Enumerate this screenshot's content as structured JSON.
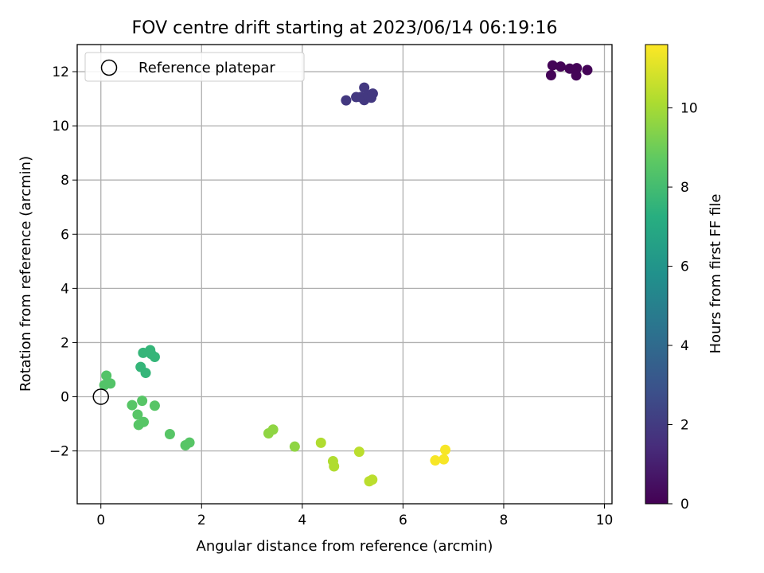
{
  "chart_data": {
    "type": "scatter",
    "title": "FOV centre drift starting at 2023/06/14 06:19:16",
    "xlabel": "Angular distance from reference (arcmin)",
    "ylabel": "Rotation from reference (arcmin)",
    "xlim": [
      -0.47,
      10.15
    ],
    "ylim": [
      -3.95,
      13.0
    ],
    "xticks": [
      0,
      2,
      4,
      6,
      8,
      10
    ],
    "xtick_labels": [
      "0",
      "2",
      "4",
      "6",
      "8",
      "10"
    ],
    "yticks": [
      -2,
      0,
      2,
      4,
      6,
      8,
      10,
      12
    ],
    "ytick_labels": [
      "−2",
      "0",
      "2",
      "4",
      "6",
      "8",
      "10",
      "12"
    ],
    "grid": true,
    "legend": {
      "position": "top-left",
      "entries": [
        "Reference platepar"
      ]
    },
    "reference_point": {
      "x": 0,
      "y": 0
    },
    "colorbar": {
      "label": "Hours from first FF file",
      "colormap": "viridis",
      "range": [
        0,
        11.6
      ],
      "ticks": [
        0,
        2,
        4,
        6,
        8,
        10
      ],
      "tick_labels": [
        "0",
        "2",
        "4",
        "6",
        "8",
        "10"
      ]
    },
    "points": [
      {
        "x": 8.97,
        "y": 12.23,
        "c": 0.1
      },
      {
        "x": 9.13,
        "y": 12.19,
        "c": 0.1
      },
      {
        "x": 9.31,
        "y": 12.11,
        "c": 0.1
      },
      {
        "x": 9.45,
        "y": 12.13,
        "c": 0.1
      },
      {
        "x": 9.66,
        "y": 12.06,
        "c": 0.1
      },
      {
        "x": 8.94,
        "y": 11.87,
        "c": 0.1
      },
      {
        "x": 9.44,
        "y": 11.86,
        "c": 0.1
      },
      {
        "x": 4.87,
        "y": 10.94,
        "c": 1.9
      },
      {
        "x": 5.07,
        "y": 11.06,
        "c": 1.9
      },
      {
        "x": 5.16,
        "y": 11.06,
        "c": 1.9
      },
      {
        "x": 5.23,
        "y": 11.41,
        "c": 1.9
      },
      {
        "x": 5.23,
        "y": 10.95,
        "c": 1.9
      },
      {
        "x": 5.31,
        "y": 11.13,
        "c": 1.9
      },
      {
        "x": 5.37,
        "y": 11.04,
        "c": 1.9
      },
      {
        "x": 5.4,
        "y": 11.19,
        "c": 1.9
      },
      {
        "x": 0.84,
        "y": 1.62,
        "c": 7.6
      },
      {
        "x": 0.98,
        "y": 1.72,
        "c": 7.6
      },
      {
        "x": 1.0,
        "y": 1.58,
        "c": 7.6
      },
      {
        "x": 1.07,
        "y": 1.47,
        "c": 7.6
      },
      {
        "x": 0.79,
        "y": 1.1,
        "c": 7.6
      },
      {
        "x": 0.89,
        "y": 0.88,
        "c": 7.6
      },
      {
        "x": 0.11,
        "y": 0.78,
        "c": 8.4
      },
      {
        "x": 0.07,
        "y": 0.43,
        "c": 8.4
      },
      {
        "x": 0.19,
        "y": 0.49,
        "c": 8.4
      },
      {
        "x": 0.62,
        "y": -0.31,
        "c": 8.5
      },
      {
        "x": 0.82,
        "y": -0.15,
        "c": 8.5
      },
      {
        "x": 1.07,
        "y": -0.33,
        "c": 8.5
      },
      {
        "x": 0.73,
        "y": -0.66,
        "c": 8.5
      },
      {
        "x": 0.75,
        "y": -1.04,
        "c": 8.5
      },
      {
        "x": 0.85,
        "y": -0.93,
        "c": 8.5
      },
      {
        "x": 1.37,
        "y": -1.38,
        "c": 8.5
      },
      {
        "x": 1.68,
        "y": -1.79,
        "c": 8.5
      },
      {
        "x": 1.76,
        "y": -1.69,
        "c": 8.5
      },
      {
        "x": 3.33,
        "y": -1.35,
        "c": 9.6
      },
      {
        "x": 3.42,
        "y": -1.21,
        "c": 9.6
      },
      {
        "x": 3.85,
        "y": -1.84,
        "c": 9.6
      },
      {
        "x": 4.37,
        "y": -1.7,
        "c": 10.2
      },
      {
        "x": 4.61,
        "y": -2.38,
        "c": 10.2
      },
      {
        "x": 4.63,
        "y": -2.57,
        "c": 10.2
      },
      {
        "x": 5.13,
        "y": -2.03,
        "c": 10.4
      },
      {
        "x": 5.33,
        "y": -3.12,
        "c": 10.4
      },
      {
        "x": 5.39,
        "y": -3.06,
        "c": 10.4
      },
      {
        "x": 6.64,
        "y": -2.35,
        "c": 11.5
      },
      {
        "x": 6.81,
        "y": -2.31,
        "c": 11.5
      },
      {
        "x": 6.84,
        "y": -1.96,
        "c": 11.5
      }
    ]
  }
}
